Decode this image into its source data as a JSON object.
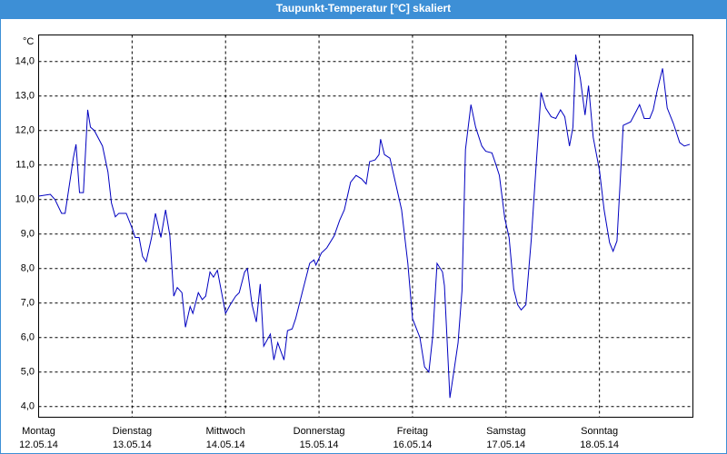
{
  "chart_data": {
    "type": "line",
    "title": "Taupunkt-Temperatur [°C] skaliert",
    "y_unit": "°C",
    "x": [
      0,
      3,
      4.2,
      5.9,
      6.8,
      8.4,
      8.9,
      9.6,
      10.5,
      11.5,
      12.6,
      13.3,
      14.3,
      16.4,
      17.8,
      18.7,
      19.7,
      20.6,
      22.5,
      23.9,
      24.8,
      25.8,
      26.7,
      27.6,
      29,
      30,
      31.4,
      32.6,
      33.7,
      34.7,
      35.6,
      36.8,
      37.7,
      38.9,
      39.6,
      41,
      42,
      42.9,
      44,
      44.9,
      45.9,
      48,
      49.2,
      50.6,
      51.5,
      52.9,
      53.6,
      54.8,
      55.9,
      56.9,
      57.8,
      59.5,
      60.4,
      61.4,
      63,
      63.9,
      65.1,
      66,
      67.9,
      69.6,
      70.7,
      71.2,
      72.6,
      74,
      75.9,
      77.3,
      78.5,
      80.1,
      81.5,
      82.9,
      84.1,
      85,
      86.4,
      87.4,
      87.8,
      88.8,
      90.2,
      91.3,
      93.2,
      94.8,
      96,
      97.9,
      99.1,
      100.2,
      101.2,
      102.3,
      103.7,
      104.2,
      105.6,
      106.6,
      107.7,
      108.7,
      109.6,
      111,
      112.2,
      113.8,
      114.8,
      116.4,
      117.3,
      118.3,
      119.7,
      120.8,
      122,
      123,
      123.9,
      125.1,
      126.5,
      127.6,
      129,
      130.2,
      131.6,
      132.8,
      134,
      135.1,
      136.3,
      137.2,
      137.9,
      139.1,
      140.3,
      141.2,
      142.4,
      144,
      145.2,
      146.6,
      147.5,
      148.5,
      150.1,
      152,
      153.4,
      154.3,
      155.5,
      156.9,
      157.8,
      158.8,
      160.2,
      161.4,
      163,
      164.6,
      165.8,
      167.2
    ],
    "series": [
      {
        "color": "#0000c0",
        "values": [
          10.1,
          10.15,
          10.0,
          9.6,
          9.6,
          10.8,
          11.2,
          11.6,
          10.2,
          10.2,
          12.6,
          12.1,
          12.0,
          11.55,
          10.8,
          9.9,
          9.5,
          9.6,
          9.6,
          9.2,
          8.9,
          8.9,
          8.35,
          8.2,
          8.9,
          9.6,
          8.9,
          9.7,
          8.95,
          7.2,
          7.45,
          7.3,
          6.3,
          6.9,
          6.7,
          7.3,
          7.1,
          7.2,
          7.9,
          7.75,
          7.95,
          6.7,
          6.95,
          7.2,
          7.3,
          7.9,
          8.0,
          6.95,
          6.45,
          7.55,
          5.75,
          6.1,
          5.35,
          5.85,
          5.35,
          6.2,
          6.25,
          6.55,
          7.4,
          8.15,
          8.25,
          8.1,
          8.45,
          8.6,
          8.95,
          9.4,
          9.7,
          10.5,
          10.7,
          10.6,
          10.45,
          11.1,
          11.15,
          11.3,
          11.75,
          11.3,
          11.2,
          10.65,
          9.7,
          8.15,
          6.55,
          6.0,
          5.15,
          5.0,
          6.05,
          8.15,
          7.9,
          7.5,
          4.25,
          5.0,
          5.85,
          7.35,
          11.45,
          12.75,
          12.1,
          11.55,
          11.4,
          11.35,
          11.05,
          10.7,
          9.45,
          8.9,
          7.4,
          6.95,
          6.8,
          6.95,
          8.85,
          10.75,
          13.1,
          12.65,
          12.4,
          12.35,
          12.6,
          12.4,
          11.55,
          12.1,
          14.2,
          13.5,
          12.45,
          13.3,
          11.8,
          10.85,
          9.7,
          8.75,
          8.5,
          8.8,
          12.15,
          12.25,
          12.55,
          12.75,
          12.35,
          12.35,
          12.6,
          13.15,
          13.8,
          12.65,
          12.2,
          11.65,
          11.55,
          11.6
        ]
      }
    ],
    "xlim": [
      0,
      168
    ],
    "xticks": [
      {
        "value": 0,
        "label": "Montag"
      },
      {
        "value": 24,
        "label": "Dienstag"
      },
      {
        "value": 48,
        "label": "Mittwoch"
      },
      {
        "value": 72,
        "label": "Donnerstag"
      },
      {
        "value": 96,
        "label": "Freitag"
      },
      {
        "value": 120,
        "label": "Samstag"
      },
      {
        "value": 144,
        "label": "Sonntag"
      }
    ],
    "xtick_dates": [
      "12.05.14",
      "13.05.14",
      "14.05.14",
      "15.05.14",
      "16.05.14",
      "17.05.14",
      "18.05.14"
    ],
    "ylim": [
      3.69,
      14.77
    ],
    "yticks": [
      {
        "value": 4,
        "label": "4,0"
      },
      {
        "value": 5,
        "label": "5,0"
      },
      {
        "value": 6,
        "label": "6,0"
      },
      {
        "value": 7,
        "label": "7,0"
      },
      {
        "value": 8,
        "label": "8,0"
      },
      {
        "value": 9,
        "label": "9,0"
      },
      {
        "value": 10,
        "label": "10,0"
      },
      {
        "value": 11,
        "label": "11,0"
      },
      {
        "value": 12,
        "label": "12,0"
      },
      {
        "value": 13,
        "label": "13,0"
      },
      {
        "value": 14,
        "label": "14,0"
      }
    ],
    "grid": true
  }
}
